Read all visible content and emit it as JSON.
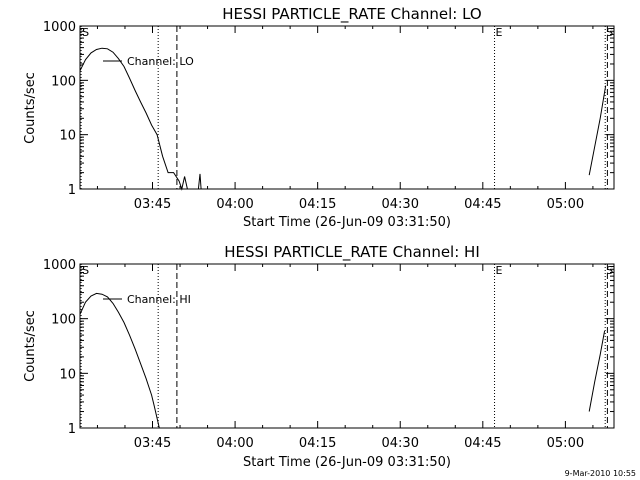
{
  "footer_timestamp": "9-Mar-2010 10:55",
  "chart_data": [
    {
      "type": "line",
      "title": "HESSI PARTICLE_RATE Channel: LO",
      "xlabel": "Start Time (26-Jun-09 03:31:50)",
      "ylabel": "Counts/sec",
      "yscale": "log",
      "ylim": [
        1,
        1000
      ],
      "xlim_minutes": [
        0,
        97
      ],
      "xticks": [
        {
          "minute": 13.17,
          "label": "03:45"
        },
        {
          "minute": 28.17,
          "label": "04:00"
        },
        {
          "minute": 43.17,
          "label": "04:15"
        },
        {
          "minute": 58.17,
          "label": "04:30"
        },
        {
          "minute": 73.17,
          "label": "04:45"
        },
        {
          "minute": 88.17,
          "label": "05:00"
        }
      ],
      "yticks": [
        {
          "value": 1,
          "label": "1"
        },
        {
          "value": 10,
          "label": "10"
        },
        {
          "value": 100,
          "label": "100"
        },
        {
          "value": 1000,
          "label": "1000"
        }
      ],
      "legend": {
        "label": "Channel: LO",
        "position": "top-left"
      },
      "markers": [
        {
          "minute": 0.2,
          "label": "S",
          "style": "dotted"
        },
        {
          "minute": 14.2,
          "label": "",
          "style": "dotted"
        },
        {
          "minute": 17.6,
          "label": "",
          "style": "dashed"
        },
        {
          "minute": 75.3,
          "label": "E",
          "style": "dotted"
        },
        {
          "minute": 95.4,
          "label": "S",
          "style": "dotted"
        },
        {
          "minute": 95.8,
          "label": "",
          "style": "dashed"
        }
      ],
      "series": [
        {
          "segments": [
            [
              [
                0,
                150
              ],
              [
                1,
                240
              ],
              [
                2,
                320
              ],
              [
                3,
                370
              ],
              [
                4,
                390
              ],
              [
                5,
                380
              ],
              [
                6,
                330
              ],
              [
                7,
                250
              ],
              [
                8,
                180
              ],
              [
                9,
                110
              ],
              [
                10,
                65
              ],
              [
                11,
                40
              ],
              [
                12,
                25
              ],
              [
                13,
                15
              ],
              [
                14,
                10
              ],
              [
                15,
                4
              ],
              [
                16,
                2
              ],
              [
                17,
                2
              ],
              [
                18,
                1.4
              ],
              [
                18.5,
                1
              ],
              [
                19,
                1.7
              ],
              [
                19.5,
                1
              ],
              [
                20,
                1
              ]
            ],
            [
              [
                21.5,
                1
              ],
              [
                21.8,
                1.9
              ],
              [
                22,
                1
              ]
            ],
            [
              [
                92.5,
                1.8
              ],
              [
                93.5,
                6
              ],
              [
                94.5,
                20
              ],
              [
                95.5,
                80
              ]
            ]
          ]
        }
      ]
    },
    {
      "type": "line",
      "title": "HESSI PARTICLE_RATE Channel: HI",
      "xlabel": "Start Time (26-Jun-09 03:31:50)",
      "ylabel": "Counts/sec",
      "yscale": "log",
      "ylim": [
        1,
        1000
      ],
      "xlim_minutes": [
        0,
        97
      ],
      "xticks": [
        {
          "minute": 13.17,
          "label": "03:45"
        },
        {
          "minute": 28.17,
          "label": "04:00"
        },
        {
          "minute": 43.17,
          "label": "04:15"
        },
        {
          "minute": 58.17,
          "label": "04:30"
        },
        {
          "minute": 73.17,
          "label": "04:45"
        },
        {
          "minute": 88.17,
          "label": "05:00"
        }
      ],
      "yticks": [
        {
          "value": 1,
          "label": "1"
        },
        {
          "value": 10,
          "label": "10"
        },
        {
          "value": 100,
          "label": "100"
        },
        {
          "value": 1000,
          "label": "1000"
        }
      ],
      "legend": {
        "label": "Channel: HI",
        "position": "top-left"
      },
      "markers": [
        {
          "minute": 0.2,
          "label": "S",
          "style": "dotted"
        },
        {
          "minute": 14.2,
          "label": "",
          "style": "dotted"
        },
        {
          "minute": 17.6,
          "label": "",
          "style": "dashed"
        },
        {
          "minute": 75.3,
          "label": "E",
          "style": "dotted"
        },
        {
          "minute": 95.4,
          "label": "S",
          "style": "dotted"
        },
        {
          "minute": 95.8,
          "label": "",
          "style": "dashed"
        }
      ],
      "series": [
        {
          "segments": [
            [
              [
                0,
                120
              ],
              [
                1,
                200
              ],
              [
                2,
                260
              ],
              [
                3,
                290
              ],
              [
                4,
                280
              ],
              [
                5,
                250
              ],
              [
                6,
                190
              ],
              [
                7,
                130
              ],
              [
                8,
                85
              ],
              [
                9,
                50
              ],
              [
                10,
                28
              ],
              [
                11,
                15
              ],
              [
                12,
                8
              ],
              [
                13,
                4
              ],
              [
                13.5,
                2.5
              ],
              [
                14,
                1.5
              ],
              [
                14.4,
                1
              ]
            ],
            [
              [
                92.5,
                2
              ],
              [
                93.5,
                7
              ],
              [
                94.5,
                22
              ],
              [
                95.3,
                60
              ]
            ]
          ]
        }
      ]
    }
  ]
}
